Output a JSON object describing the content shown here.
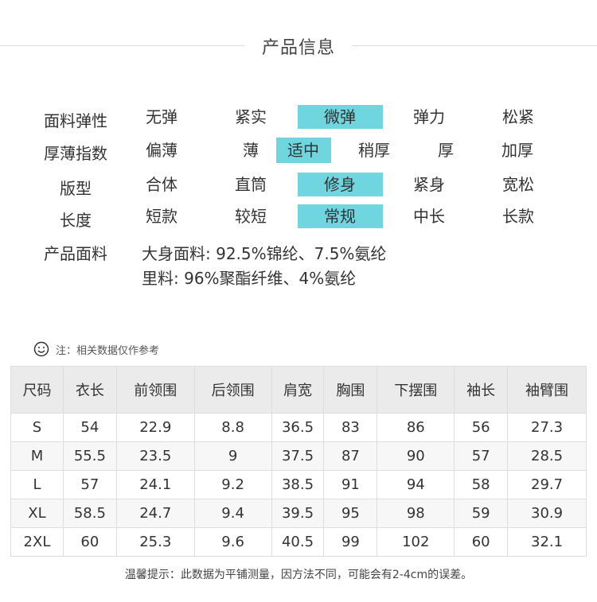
{
  "title": "产品信息",
  "attributes": [
    {
      "label": "面料弹性",
      "options": [
        "无弹",
        "紧实",
        "微弹",
        "弹力",
        "松紧"
      ],
      "selected": 2
    },
    {
      "label": "厚薄指数",
      "options": [
        "偏薄",
        "薄",
        "适中",
        "稍厚",
        "厚",
        "加厚"
      ],
      "selected": 2
    },
    {
      "label": "版型",
      "options": [
        "合体",
        "直筒",
        "修身",
        "紧身",
        "宽松"
      ],
      "selected": 2
    },
    {
      "label": "长度",
      "options": [
        "短款",
        "较短",
        "常规",
        "中长",
        "长款"
      ],
      "selected": 2
    }
  ],
  "fabric": {
    "label": "产品面料",
    "lines": [
      "大身面料: 92.5%锦纶、7.5%氨纶",
      "里料: 96%聚酯纤维、4%氨纶"
    ]
  },
  "note": {
    "icon": "smiley-icon",
    "text": "注：相关数据仅作参考"
  },
  "size_table": {
    "headers": [
      "尺码",
      "衣长",
      "前领围",
      "后领围",
      "肩宽",
      "胸围",
      "下摆围",
      "袖长",
      "袖臂围"
    ],
    "rows": [
      [
        "S",
        "54",
        "22.9",
        "8.8",
        "36.5",
        "83",
        "86",
        "56",
        "27.3"
      ],
      [
        "M",
        "55.5",
        "23.5",
        "9",
        "37.5",
        "87",
        "90",
        "57",
        "28.5"
      ],
      [
        "L",
        "57",
        "24.1",
        "9.2",
        "38.5",
        "91",
        "94",
        "58",
        "29.7"
      ],
      [
        "XL",
        "58.5",
        "24.7",
        "9.4",
        "39.5",
        "95",
        "98",
        "59",
        "30.9"
      ],
      [
        "2XL",
        "60",
        "25.3",
        "9.6",
        "40.5",
        "99",
        "102",
        "60",
        "32.1"
      ]
    ]
  },
  "footer": "温馨提示：此数据为平铺测量，因方法不同，可能会有2-4cm的误差。",
  "colors": {
    "highlight": "#6fd6e0",
    "header_bg": "#ebebeb"
  }
}
